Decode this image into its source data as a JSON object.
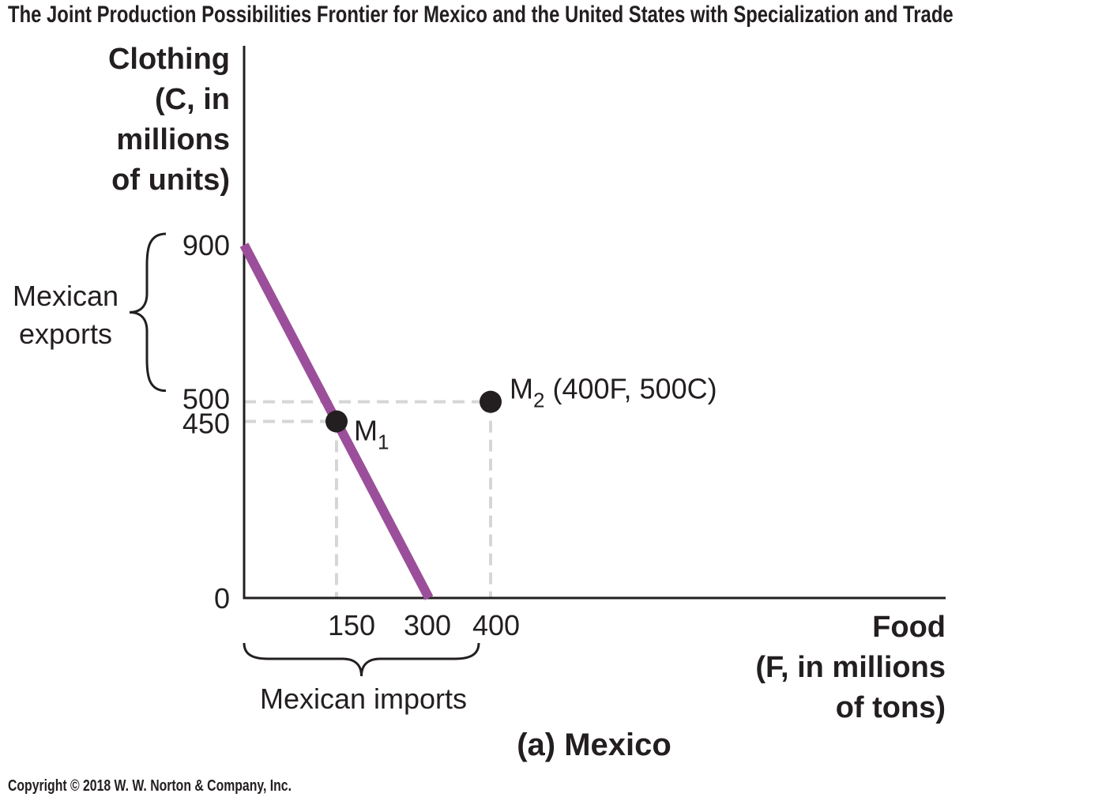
{
  "page": {
    "title": "The Joint Production Possibilities Frontier for Mexico and the United States with Specialization and Trade",
    "copyright": "Copyright © 2018 W. W. Norton & Company, Inc."
  },
  "chart_data": {
    "type": "line",
    "subtitle": "(a) Mexico",
    "xlabel": [
      "Food",
      "(F, in millions",
      "of tons)"
    ],
    "ylabel": [
      "Clothing",
      "(C, in",
      "millions",
      "of units)"
    ],
    "xlim": [
      0,
      1200
    ],
    "ylim": [
      0,
      900
    ],
    "x_ticks": [
      {
        "value": 150,
        "label": "150"
      },
      {
        "value": 300,
        "label": "300"
      },
      {
        "value": 400,
        "label": "400"
      }
    ],
    "y_ticks": [
      {
        "value": 0,
        "label": "0"
      },
      {
        "value": 450,
        "label": "450"
      },
      {
        "value": 500,
        "label": "500"
      },
      {
        "value": 900,
        "label": "900"
      }
    ],
    "series": [
      {
        "x": [
          0,
          300
        ],
        "y": [
          900,
          0
        ],
        "color": "#9b4f9a"
      }
    ],
    "points": [
      {
        "label": "M",
        "subscript": "1",
        "suffix": "",
        "x": 150,
        "y": 450
      },
      {
        "label": "M",
        "subscript": "2",
        "suffix": " (400F, 500C)",
        "x": 400,
        "y": 500
      }
    ],
    "annotations": {
      "exports_brace": {
        "from": 500,
        "to": 900,
        "label": [
          "Mexican",
          "exports"
        ]
      },
      "imports_brace": {
        "from": 0,
        "to": 400,
        "label": "Mexican imports"
      }
    },
    "colors": {
      "frontier": "#9b4f9a",
      "guides": "#d6d6d6",
      "ink": "#231f20"
    }
  }
}
